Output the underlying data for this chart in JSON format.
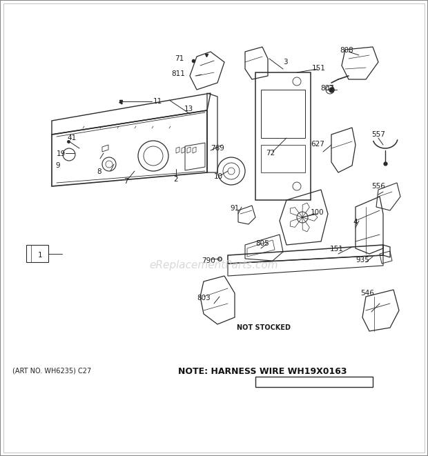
{
  "bg_color": "#ffffff",
  "art_no_text": "(ART NO. WH6235) C27",
  "note_text": "NOTE: HARNESS WIRE WH19X0163",
  "watermark": "eReplacementParts.com",
  "watermark_color": "#c8c8c8",
  "watermark_fontsize": 11,
  "label_color": "#1a1a1a",
  "label_fontsize": 7.5,
  "art_fontsize": 7,
  "note_fontsize": 9,
  "diagram_color": "#2a2a2a"
}
